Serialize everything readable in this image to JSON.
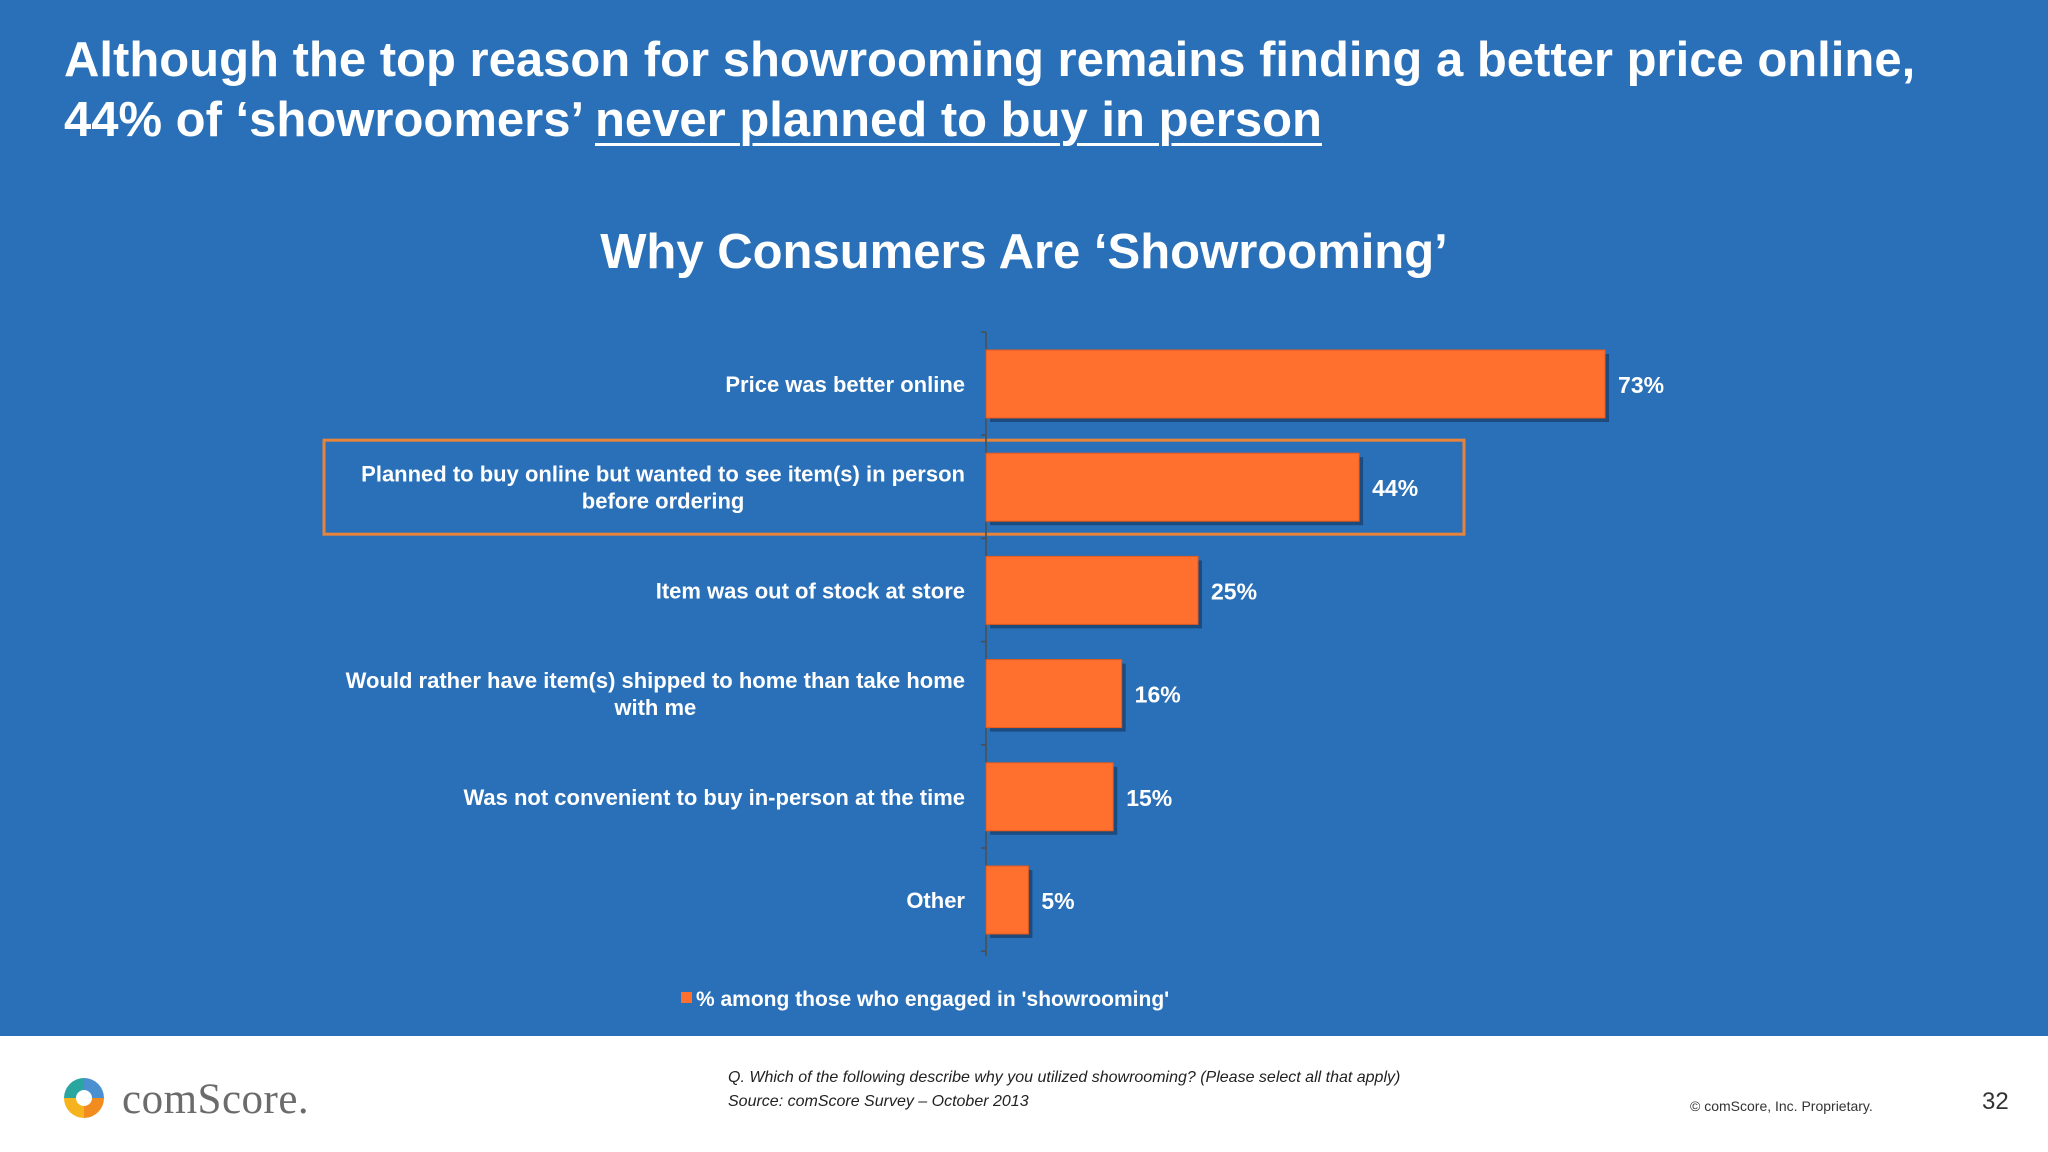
{
  "headline": {
    "line1": "Although the top reason for showrooming remains finding a better price online,",
    "line2_prefix": "44% of ‘showroomers’ ",
    "line2_emphasis": "never planned to buy in person"
  },
  "chart_data": {
    "type": "bar",
    "orientation": "horizontal",
    "title": "Why Consumers Are ‘Showrooming’",
    "categories": [
      [
        "Price was better online"
      ],
      [
        "Planned to buy online but wanted to see item(s) in person",
        "before ordering"
      ],
      [
        "Item was out of stock at store"
      ],
      [
        "Would rather have item(s) shipped to home than take home",
        "with me"
      ],
      [
        "Was not convenient to buy in-person at the time"
      ],
      [
        "Other"
      ]
    ],
    "series": [
      {
        "name": "% among those who engaged in 'showrooming'",
        "values": [
          73,
          44,
          25,
          16,
          15,
          5
        ],
        "labels": [
          "73%",
          "44%",
          "25%",
          "16%",
          "15%",
          "5%"
        ]
      }
    ],
    "value_unit": "%",
    "highlighted_category_index": 1,
    "legend_position": "bottom",
    "grid": false,
    "colors": {
      "bar": "#ff6f2e",
      "highlight_box": "#e8833a",
      "background": "#2a70b8",
      "text": "#ffffff"
    }
  },
  "footer": {
    "logo_text": "comScore.",
    "question": "Q. Which of the following describe why you utilized showrooming? (Please select all that apply)",
    "source": "Source: comScore Survey – October 2013",
    "copyright": "© comScore, Inc. Proprietary.",
    "page_number": "32"
  }
}
